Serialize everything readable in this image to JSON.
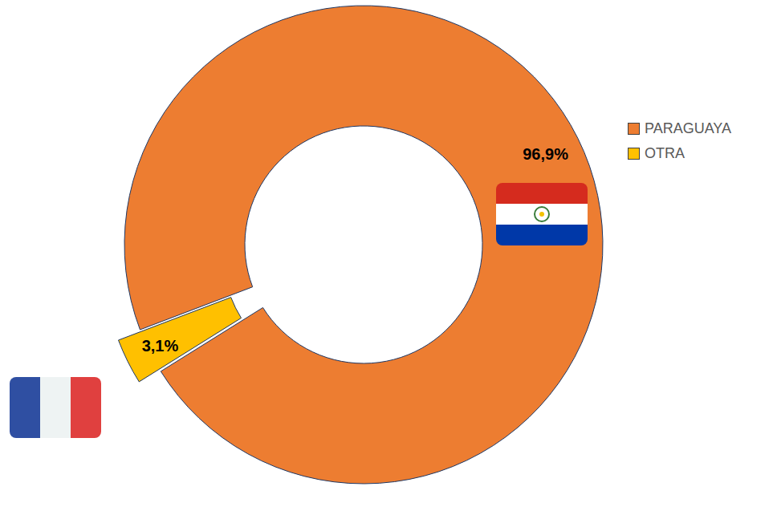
{
  "chart_data": {
    "type": "donut",
    "categories": [
      "PARAGUAYA",
      "OTRA"
    ],
    "values": [
      96.9,
      3.1
    ],
    "value_labels": [
      "96,9%",
      "3,1%"
    ],
    "colors": [
      "#ed7d31",
      "#ffc000"
    ],
    "data_labels": true,
    "legend": "top-right"
  }
}
